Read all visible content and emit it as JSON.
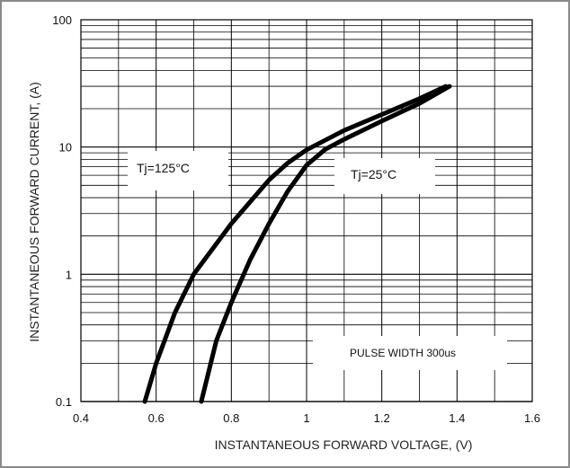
{
  "chart_data": {
    "type": "line",
    "xlabel": "INSTANTANEOUS FORWARD VOLTAGE, (V)",
    "ylabel": "INSTANTANEOUS FORWARD CURRENT, (A)",
    "xlim": [
      0.4,
      1.6
    ],
    "ylim": [
      0.1,
      100
    ],
    "y_scale": "log",
    "x_ticks": [
      0.4,
      0.6,
      0.8,
      1.0,
      1.2,
      1.4,
      1.6
    ],
    "x_tick_labels": [
      "0.4",
      "0.6",
      "0.8",
      "1",
      "1.2",
      "1.4",
      "1.6"
    ],
    "y_ticks": [
      0.1,
      1,
      10,
      100
    ],
    "y_tick_labels": [
      "0.1",
      "1",
      "10",
      "100"
    ],
    "grid": true,
    "series": [
      {
        "name": "Tj=125°C",
        "x": [
          0.57,
          0.6,
          0.65,
          0.7,
          0.8,
          0.9,
          0.95,
          1.0,
          1.1,
          1.2,
          1.3,
          1.37
        ],
        "y": [
          0.1,
          0.2,
          0.5,
          1.0,
          2.5,
          5.5,
          7.5,
          9.5,
          13.5,
          18.0,
          24.0,
          30.0
        ]
      },
      {
        "name": "Tj=25°C",
        "x": [
          0.72,
          0.76,
          0.8,
          0.85,
          0.9,
          0.95,
          1.0,
          1.05,
          1.1,
          1.2,
          1.3,
          1.38
        ],
        "y": [
          0.1,
          0.3,
          0.6,
          1.3,
          2.5,
          4.5,
          7.2,
          9.6,
          11.5,
          16.0,
          22.0,
          30.0
        ]
      }
    ],
    "annotations": [
      {
        "text": "Tj=125°C"
      },
      {
        "text": "Tj=25°C"
      },
      {
        "text": "PULSE WIDTH 300us"
      }
    ],
    "line_color": "#000000",
    "grid_color": "#000000"
  }
}
